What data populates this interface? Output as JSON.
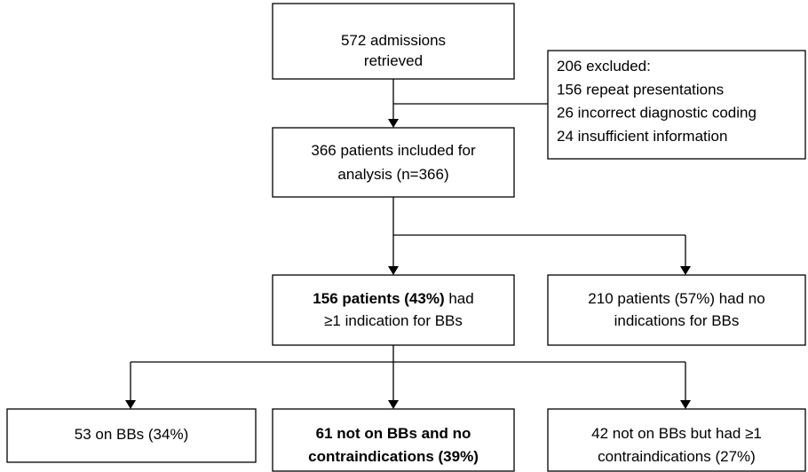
{
  "nodes": [
    {
      "lines": [
        [
          {
            "text": "572 admissions",
            "bold": false
          }
        ],
        [
          {
            "text": "retrieved",
            "bold": false
          }
        ]
      ]
    },
    {
      "lines": [
        [
          {
            "text": "206 excluded:",
            "bold": false
          }
        ],
        [
          {
            "text": "156 repeat presentations",
            "bold": false
          }
        ],
        [
          {
            "text": "26 incorrect diagnostic coding",
            "bold": false
          }
        ],
        [
          {
            "text": "24 insufficient information",
            "bold": false
          }
        ]
      ]
    },
    {
      "lines": [
        [
          {
            "text": "366 patients included for",
            "bold": false
          }
        ],
        [
          {
            "text": "analysis (n=366)",
            "bold": false
          }
        ]
      ]
    },
    {
      "lines": [
        [
          {
            "text": "156 patients (43%)",
            "bold": true
          },
          {
            "text": " had",
            "bold": false
          }
        ],
        [
          {
            "text": "≥1 indication for BBs",
            "bold": false
          }
        ]
      ]
    },
    {
      "lines": [
        [
          {
            "text": "210 patients (57%) had no",
            "bold": false
          }
        ],
        [
          {
            "text": "indications for BBs",
            "bold": false
          }
        ]
      ]
    },
    {
      "lines": [
        [
          {
            "text": "53 on BBs (34%)",
            "bold": false
          }
        ]
      ]
    },
    {
      "lines": [
        [
          {
            "text": "61 not on BBs and no",
            "bold": true
          }
        ],
        [
          {
            "text": "contraindications (39%)",
            "bold": true
          }
        ]
      ]
    },
    {
      "lines": [
        [
          {
            "text": "42 not on BBs but had ≥1",
            "bold": false
          }
        ],
        [
          {
            "text": "contraindications (27%)",
            "bold": false
          }
        ]
      ]
    }
  ]
}
